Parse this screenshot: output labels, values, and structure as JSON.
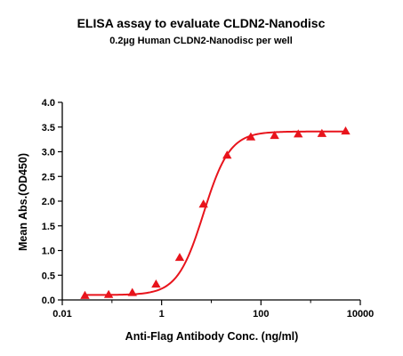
{
  "chart_data": {
    "type": "scatter",
    "title": "ELISA assay to evaluate CLDN2-Nanodisc",
    "subtitle": "0.2µg Human CLDN2-Nanodisc per well",
    "xlabel": "Anti-Flag Antibody Conc. (ng/ml)",
    "ylabel": "Mean Abs.(OD450)",
    "x_scale": "log",
    "xlim": [
      0.01,
      10000
    ],
    "ylim": [
      0,
      4.0
    ],
    "x_ticks": [
      {
        "value": 0.01,
        "label": "0.01"
      },
      {
        "value": 1,
        "label": "1"
      },
      {
        "value": 100,
        "label": "100"
      },
      {
        "value": 10000,
        "label": "10000"
      }
    ],
    "y_ticks": [
      {
        "value": 0.0,
        "label": "0.0"
      },
      {
        "value": 0.5,
        "label": "0.5"
      },
      {
        "value": 1.0,
        "label": "1.0"
      },
      {
        "value": 1.5,
        "label": "1.5"
      },
      {
        "value": 2.0,
        "label": "2.0"
      },
      {
        "value": 2.5,
        "label": "2.5"
      },
      {
        "value": 3.0,
        "label": "3.0"
      },
      {
        "value": 3.5,
        "label": "3.5"
      },
      {
        "value": 4.0,
        "label": "4.0"
      }
    ],
    "grid": false,
    "series": [
      {
        "marker": "triangle",
        "color": "#e8141c",
        "x": [
          0.0286,
          0.0858,
          0.257,
          0.772,
          2.31,
          6.95,
          20.8,
          62.5,
          188,
          563,
          1688,
          5063
        ],
        "y": [
          0.09,
          0.11,
          0.15,
          0.32,
          0.86,
          1.94,
          2.93,
          3.3,
          3.33,
          3.36,
          3.37,
          3.42
        ]
      }
    ],
    "fit_curve": {
      "type": "4PL",
      "color": "#e8141c",
      "bottom": 0.1,
      "top": 3.41,
      "ec50": 7.0,
      "hill": 1.65
    }
  }
}
